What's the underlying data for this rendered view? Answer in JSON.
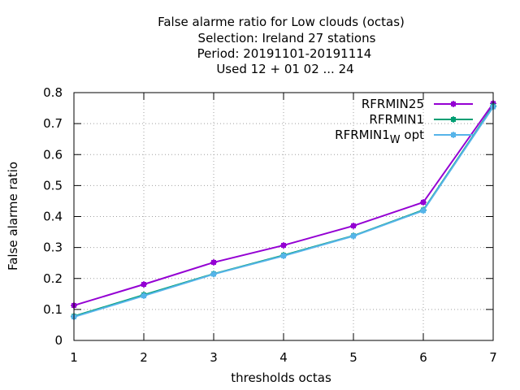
{
  "title_lines": [
    "False alarme ratio  for Low clouds (octas)",
    "Selection: Ireland      27 stations",
    "Period: 20191101-20191114",
    "Used  12 + 01 02 ... 24"
  ],
  "chart_data": {
    "type": "line",
    "xlabel": "thresholds octas",
    "ylabel": "False alarme ratio",
    "x": [
      1,
      2,
      3,
      4,
      5,
      6,
      7
    ],
    "xlim": [
      1,
      7
    ],
    "ylim": [
      0,
      0.8
    ],
    "xticks": [
      "1",
      "2",
      "3",
      "4",
      "5",
      "6",
      "7"
    ],
    "yticks": [
      "0",
      "0.1",
      "0.2",
      "0.3",
      "0.4",
      "0.5",
      "0.6",
      "0.7",
      "0.8"
    ],
    "grid": true,
    "legend_position": "top-right",
    "series": [
      {
        "name": "RFRMIN25",
        "color": "#9400d3",
        "values": [
          0.113,
          0.181,
          0.252,
          0.307,
          0.37,
          0.446,
          0.765
        ]
      },
      {
        "name": "RFRMIN1",
        "color": "#009e73",
        "values": [
          0.078,
          0.147,
          0.215,
          0.275,
          0.338,
          0.421,
          0.757
        ]
      },
      {
        "name": "RFRMIN1",
        "name_subscript": "W",
        "name_suffix": " opt",
        "color": "#56b4e9",
        "values": [
          0.076,
          0.144,
          0.214,
          0.273,
          0.337,
          0.419,
          0.754
        ]
      }
    ]
  }
}
